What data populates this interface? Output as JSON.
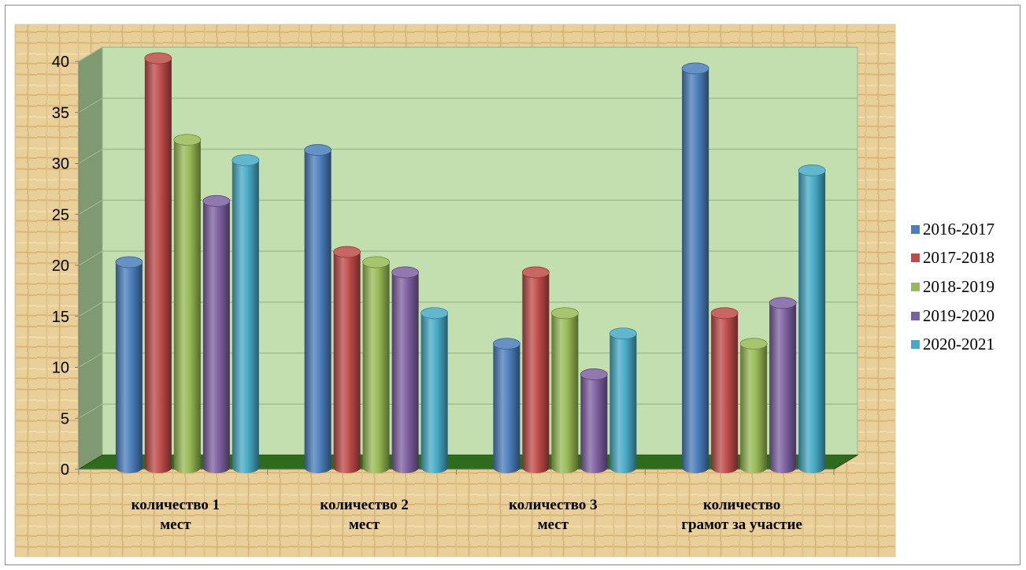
{
  "chart_data": {
    "type": "bar",
    "title": "",
    "xlabel": "",
    "ylabel": "",
    "ylim": [
      0,
      40
    ],
    "yticks": [
      0,
      5,
      10,
      15,
      20,
      25,
      30,
      35,
      40
    ],
    "grid": true,
    "legend_position": "right",
    "categories": [
      [
        "количество 1",
        "мест"
      ],
      [
        "количество 2",
        "мест"
      ],
      [
        "количество 3",
        "мест"
      ],
      [
        "количество",
        "грамот за участие"
      ]
    ],
    "series": [
      {
        "name": "2016-2017",
        "color": "#4a7ebb",
        "values": [
          20,
          31,
          12,
          39
        ]
      },
      {
        "name": "2017-2018",
        "color": "#be4b48",
        "values": [
          40,
          21,
          19,
          15
        ]
      },
      {
        "name": "2018-2019",
        "color": "#98b954",
        "values": [
          32,
          20,
          15,
          12
        ]
      },
      {
        "name": "2019-2020",
        "color": "#7d60a0",
        "values": [
          26,
          19,
          9,
          16
        ]
      },
      {
        "name": "2020-2021",
        "color": "#46aac5",
        "values": [
          30,
          15,
          13,
          29
        ]
      }
    ]
  }
}
